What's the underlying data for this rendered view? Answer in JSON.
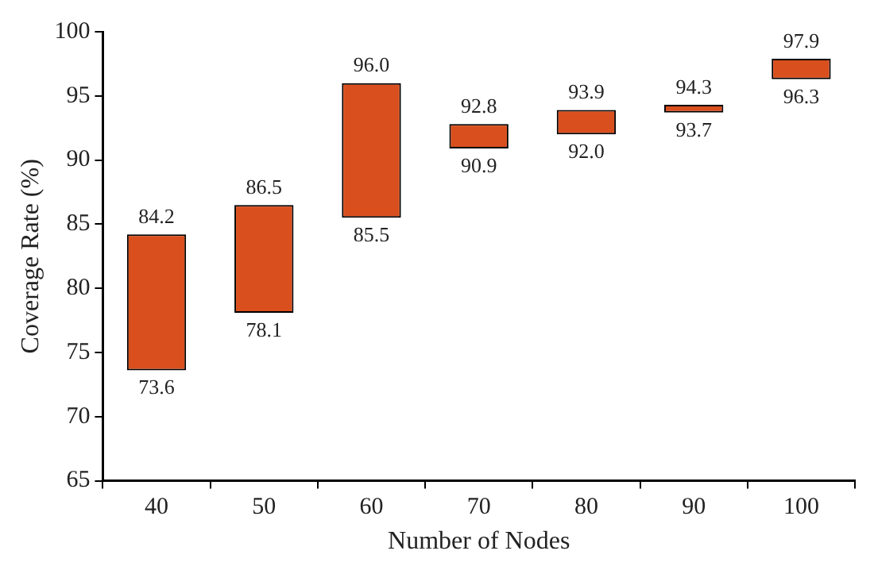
{
  "chart_data": {
    "type": "bar",
    "xlabel": "Number of Nodes",
    "ylabel": "Coverage Rate (%)",
    "categories": [
      "40",
      "50",
      "60",
      "70",
      "80",
      "90",
      "100"
    ],
    "base": [
      73.6,
      78.1,
      85.5,
      90.9,
      92.0,
      93.7,
      96.3
    ],
    "values": [
      10.6,
      8.4,
      10.5,
      1.9,
      1.9,
      0.6,
      1.6
    ],
    "color": "#d94f1e",
    "ylim": [
      65,
      100
    ],
    "yticks": [
      65,
      70,
      75,
      80,
      85,
      90,
      95,
      100
    ],
    "annotations": [
      {
        "text": "84.2",
        "x": "40",
        "y": 84.2
      },
      {
        "text": "73.6",
        "x": "40",
        "y": 73.6
      },
      {
        "text": "86.5",
        "x": "50",
        "y": 86.5
      },
      {
        "text": "78.1",
        "x": "50",
        "y": 78.1
      },
      {
        "text": "96.0",
        "x": "60",
        "y": 96.0
      },
      {
        "text": "85.5",
        "x": "60",
        "y": 85.5
      },
      {
        "text": "92.8",
        "x": "70",
        "y": 92.8
      },
      {
        "text": "90.9",
        "x": "70",
        "y": 90.9
      },
      {
        "text": "93.9",
        "x": "80",
        "y": 93.9
      },
      {
        "text": "92.0",
        "x": "80",
        "y": 92.0
      },
      {
        "text": "94.3",
        "x": "90",
        "y": 94.3
      },
      {
        "text": "93.7",
        "x": "90",
        "y": 93.7
      },
      {
        "text": "97.9",
        "x": "100",
        "y": 97.9
      },
      {
        "text": "96.3",
        "x": "100",
        "y": 96.3
      }
    ]
  }
}
